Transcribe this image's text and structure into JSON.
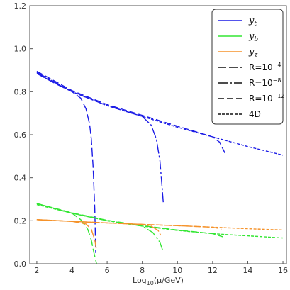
{
  "chart_data": {
    "type": "line",
    "title": "",
    "xlabel": "Log10(μ/GeV)",
    "xlabel_parts": {
      "pre": "Log",
      "sub": "10",
      "post": "(μ/GeV)"
    },
    "ylabel": "",
    "xlim": [
      1.6,
      16.2
    ],
    "ylim": [
      0,
      1.2
    ],
    "xticks": [
      2,
      4,
      6,
      8,
      10,
      12,
      14,
      16
    ],
    "yticks": [
      0.0,
      0.2,
      0.4,
      0.6,
      0.8,
      1.0,
      1.2
    ],
    "ytick_labels": [
      "0.0",
      "0.2",
      "0.4",
      "0.6",
      "0.8",
      "1.0",
      "1.2"
    ],
    "grid": false,
    "legend_position": "top-right",
    "colors": {
      "yt": "#1a1ae6",
      "yb": "#33e633",
      "ytau": "#f5922a",
      "legend_line": "#111111"
    },
    "legend": {
      "couplings": [
        {
          "key": "yt",
          "base": "y",
          "sub": "t"
        },
        {
          "key": "yb",
          "base": "y",
          "sub": "b"
        },
        {
          "key": "ytau",
          "base": "y",
          "sub": "τ"
        }
      ],
      "styles": [
        {
          "key": "R1",
          "label": "R=10",
          "exp": "−4",
          "dash": "12,4"
        },
        {
          "key": "R2",
          "label": "R=10",
          "exp": "−8",
          "dash": "14,3,3,3"
        },
        {
          "key": "R3",
          "label": "R=10",
          "exp": "−12",
          "dash": "9,4"
        },
        {
          "key": "D4",
          "label": "4D",
          "exp": "",
          "dash": "4,2"
        }
      ]
    },
    "series": [
      {
        "coupling": "yt",
        "style": "D4",
        "x": [
          2,
          4,
          6,
          8,
          10,
          12,
          14,
          16
        ],
        "y": [
          0.885,
          0.8,
          0.735,
          0.685,
          0.635,
          0.59,
          0.545,
          0.505
        ]
      },
      {
        "coupling": "yt",
        "style": "R1",
        "x": [
          2,
          3,
          4,
          4.5,
          4.8,
          5.0,
          5.1,
          5.2,
          5.3,
          5.35
        ],
        "y": [
          0.885,
          0.84,
          0.8,
          0.77,
          0.72,
          0.65,
          0.58,
          0.45,
          0.25,
          0.05
        ]
      },
      {
        "coupling": "yt",
        "style": "R2",
        "x": [
          2,
          4,
          6,
          8,
          8.5,
          8.8,
          9.0,
          9.1,
          9.2
        ],
        "y": [
          0.89,
          0.8,
          0.735,
          0.685,
          0.645,
          0.58,
          0.48,
          0.38,
          0.28
        ]
      },
      {
        "coupling": "yt",
        "style": "R3",
        "x": [
          2,
          4,
          6,
          8,
          10,
          12,
          12.4,
          12.7
        ],
        "y": [
          0.895,
          0.805,
          0.74,
          0.69,
          0.64,
          0.59,
          0.565,
          0.515
        ]
      },
      {
        "coupling": "yb",
        "style": "D4",
        "x": [
          2,
          4,
          6,
          8,
          10,
          12,
          14,
          16
        ],
        "y": [
          0.275,
          0.235,
          0.2,
          0.175,
          0.155,
          0.14,
          0.13,
          0.12
        ]
      },
      {
        "coupling": "yb",
        "style": "R1",
        "x": [
          2,
          4,
          4.5,
          4.9,
          5.1,
          5.25,
          5.4
        ],
        "y": [
          0.28,
          0.235,
          0.205,
          0.16,
          0.11,
          0.05,
          0.0
        ]
      },
      {
        "coupling": "yb",
        "style": "R2",
        "x": [
          2,
          4,
          6,
          8,
          8.6,
          9.0,
          9.15
        ],
        "y": [
          0.28,
          0.235,
          0.2,
          0.175,
          0.145,
          0.1,
          0.065
        ]
      },
      {
        "coupling": "yb",
        "style": "R3",
        "x": [
          2,
          4,
          6,
          8,
          10,
          12,
          12.4,
          12.6
        ],
        "y": [
          0.28,
          0.237,
          0.202,
          0.177,
          0.157,
          0.14,
          0.13,
          0.125
        ]
      },
      {
        "coupling": "ytau",
        "style": "D4",
        "x": [
          2,
          4,
          6,
          8,
          10,
          12,
          14,
          16
        ],
        "y": [
          0.205,
          0.197,
          0.19,
          0.183,
          0.177,
          0.17,
          0.163,
          0.157
        ]
      },
      {
        "coupling": "ytau",
        "style": "R1",
        "x": [
          2,
          4,
          4.8,
          5.1,
          5.3,
          5.4
        ],
        "y": [
          0.205,
          0.197,
          0.185,
          0.16,
          0.11,
          0.06
        ]
      },
      {
        "coupling": "ytau",
        "style": "R2",
        "x": [
          2,
          4,
          6,
          8,
          8.5,
          8.9,
          9.1
        ],
        "y": [
          0.205,
          0.197,
          0.19,
          0.183,
          0.175,
          0.155,
          0.125
        ]
      },
      {
        "coupling": "ytau",
        "style": "R3",
        "x": [
          2,
          4,
          6,
          8,
          10,
          12,
          12.3,
          12.5
        ],
        "y": [
          0.205,
          0.197,
          0.19,
          0.183,
          0.177,
          0.17,
          0.165,
          0.16
        ]
      }
    ]
  }
}
